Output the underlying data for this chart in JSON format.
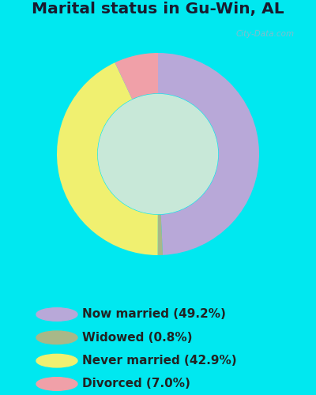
{
  "title": "Marital status in Gu-Win, AL",
  "title_color": "#1a1a2e",
  "page_bg": "#00e8f0",
  "chart_panel_color": "#c8e8d8",
  "slices": [
    {
      "label": "Now married (49.2%)",
      "value": 49.2,
      "color": "#b8a8d8"
    },
    {
      "label": "Widowed (0.8%)",
      "value": 0.8,
      "color": "#a8b888"
    },
    {
      "label": "Never married (42.9%)",
      "value": 42.9,
      "color": "#f0f070"
    },
    {
      "label": "Divorced (7.0%)",
      "value": 7.0,
      "color": "#f0a0a8"
    }
  ],
  "donut_width": 0.4,
  "watermark": "City-Data.com",
  "watermark_color": "#90b8c8",
  "legend_text_color": "#222222",
  "legend_fontsize": 11.0,
  "title_fontsize": 14.5
}
